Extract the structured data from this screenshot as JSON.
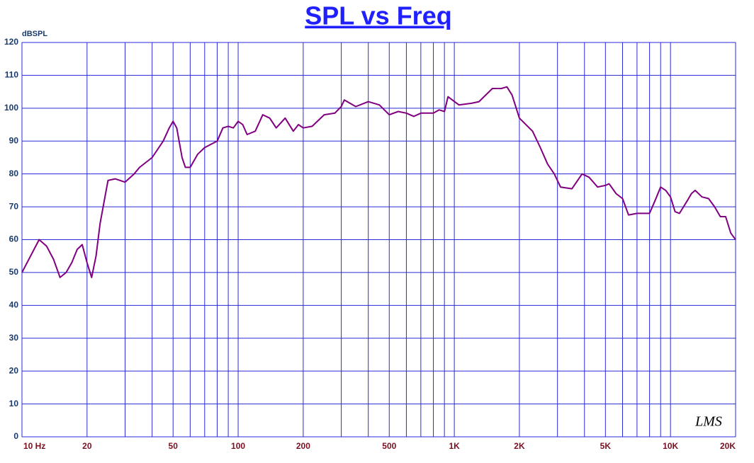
{
  "chart_data": {
    "type": "line",
    "title": "SPL vs Freq",
    "ylabel": "dBSPL",
    "annotation": "LMS",
    "log_x": true,
    "grid": true,
    "color": "#800080",
    "grid_color": "#2a2ad8",
    "xlim": [
      10,
      20000
    ],
    "ylim": [
      0,
      120
    ],
    "yticks": [
      0,
      10,
      20,
      30,
      40,
      50,
      60,
      70,
      80,
      90,
      100,
      110,
      120
    ],
    "xticks": [
      {
        "value": 10,
        "label": "10  Hz"
      },
      20,
      50,
      100,
      200,
      500,
      {
        "value": 1000,
        "label": "1K"
      },
      {
        "value": 2000,
        "label": "2K"
      },
      {
        "value": 5000,
        "label": "5K"
      },
      {
        "value": 10000,
        "label": "10K"
      },
      {
        "value": 20000,
        "label": "20K"
      }
    ],
    "xminor": [
      30,
      40,
      60,
      70,
      80,
      90,
      300,
      400,
      600,
      700,
      800,
      900,
      3000,
      4000,
      6000,
      7000,
      8000,
      9000
    ],
    "x": [
      10,
      12,
      13,
      14,
      15,
      16,
      17,
      18,
      19,
      20,
      21,
      22,
      23,
      25,
      27,
      30,
      33,
      35,
      40,
      45,
      48,
      50,
      52,
      55,
      57,
      60,
      65,
      70,
      80,
      85,
      90,
      95,
      100,
      105,
      110,
      120,
      130,
      140,
      150,
      165,
      180,
      190,
      200,
      220,
      250,
      280,
      300,
      310,
      350,
      400,
      450,
      500,
      550,
      600,
      650,
      700,
      800,
      850,
      900,
      935,
      1050,
      1200,
      1300,
      1500,
      1650,
      1750,
      1850,
      2000,
      2300,
      2500,
      2700,
      2900,
      3100,
      3500,
      3900,
      4200,
      4600,
      5000,
      5200,
      5600,
      6000,
      6400,
      7000,
      7500,
      8000,
      8500,
      9000,
      9500,
      10000,
      10500,
      11000,
      12000,
      12500,
      13000,
      14000,
      15000,
      16000,
      17000,
      18000,
      19000,
      20000
    ],
    "values": [
      50,
      60,
      58,
      54,
      48.5,
      50,
      53,
      57,
      58.5,
      53,
      48.5,
      55,
      65,
      78,
      78.5,
      77.5,
      80,
      82,
      85,
      90,
      94,
      96,
      94,
      85,
      82,
      82,
      86,
      88,
      90,
      94,
      94.5,
      94,
      96,
      95,
      92,
      93,
      98,
      97,
      94,
      97,
      93,
      95,
      94,
      94.5,
      98,
      98.5,
      100.5,
      102.5,
      100.5,
      102,
      101,
      98,
      99,
      98.5,
      97.5,
      98.5,
      98.5,
      99.5,
      99,
      103.5,
      101,
      101.5,
      102,
      106,
      106,
      106.5,
      104,
      97,
      93,
      88,
      83,
      80,
      76,
      75.5,
      80,
      79,
      76,
      76.5,
      77,
      74,
      72.5,
      67.5,
      68,
      68,
      68,
      72,
      76,
      75,
      73,
      68.5,
      68,
      72,
      74,
      75,
      73,
      72.5,
      70,
      67,
      67,
      62,
      60
    ]
  }
}
